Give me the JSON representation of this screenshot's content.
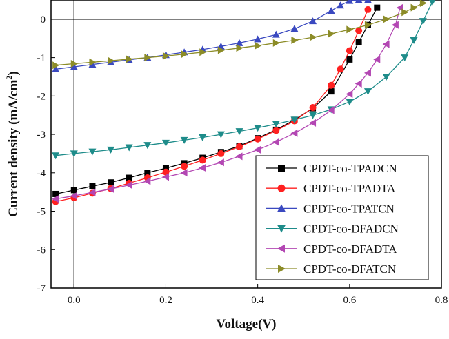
{
  "chart_data": {
    "type": "scatter",
    "title": "",
    "xlabel": "Voltage(V)",
    "ylabel_parts": {
      "main": "Current density (mA/cm",
      "sup": "2",
      "close": ")"
    },
    "xlim": [
      -0.05,
      0.8
    ],
    "ylim": [
      -7,
      0.5
    ],
    "x_ticks": [
      0.0,
      0.2,
      0.4,
      0.6,
      0.8
    ],
    "x_tick_labels": [
      "0.0",
      "0.2",
      "0.4",
      "0.6",
      "0.8"
    ],
    "y_ticks": [
      0,
      -1,
      -2,
      -3,
      -4,
      -5,
      -6,
      -7
    ],
    "y_tick_labels": [
      "0",
      "-1",
      "-2",
      "-3",
      "-4",
      "-5",
      "-6",
      "-7"
    ],
    "zero_lines": {
      "x": 0,
      "y": 0
    },
    "legend_position": "lower-right",
    "series": [
      {
        "name": "CPDT-co-TPADCN",
        "color": "#000000",
        "marker": "square",
        "x": [
          -0.04,
          0.0,
          0.04,
          0.08,
          0.12,
          0.16,
          0.2,
          0.24,
          0.28,
          0.32,
          0.36,
          0.4,
          0.44,
          0.48,
          0.52,
          0.56,
          0.6,
          0.62,
          0.64,
          0.66
        ],
        "y": [
          -4.55,
          -4.45,
          -4.35,
          -4.25,
          -4.13,
          -4.0,
          -3.88,
          -3.75,
          -3.61,
          -3.46,
          -3.3,
          -3.1,
          -2.88,
          -2.62,
          -2.32,
          -1.88,
          -1.05,
          -0.6,
          -0.15,
          0.3
        ]
      },
      {
        "name": "CPDT-co-TPADTA",
        "color": "#ff2020",
        "marker": "circle",
        "x": [
          -0.04,
          0.0,
          0.04,
          0.08,
          0.12,
          0.16,
          0.2,
          0.24,
          0.28,
          0.32,
          0.36,
          0.4,
          0.44,
          0.48,
          0.52,
          0.56,
          0.58,
          0.6,
          0.62,
          0.64
        ],
        "y": [
          -4.75,
          -4.65,
          -4.53,
          -4.41,
          -4.27,
          -4.13,
          -3.98,
          -3.83,
          -3.67,
          -3.5,
          -3.32,
          -3.12,
          -2.9,
          -2.65,
          -2.3,
          -1.72,
          -1.3,
          -0.82,
          -0.3,
          0.25
        ]
      },
      {
        "name": "CPDT-co-TPATCN",
        "color": "#3a49c0",
        "marker": "triangle-up",
        "x": [
          -0.04,
          0.0,
          0.04,
          0.08,
          0.12,
          0.16,
          0.2,
          0.24,
          0.28,
          0.32,
          0.36,
          0.4,
          0.44,
          0.48,
          0.52,
          0.56,
          0.58,
          0.6,
          0.62,
          0.64
        ],
        "y": [
          -1.3,
          -1.24,
          -1.18,
          -1.12,
          -1.06,
          -1.0,
          -0.93,
          -0.86,
          -0.79,
          -0.71,
          -0.62,
          -0.52,
          -0.4,
          -0.25,
          -0.05,
          0.22,
          0.36,
          0.48,
          0.5,
          0.5
        ]
      },
      {
        "name": "CPDT-co-DFADCN",
        "color": "#1e8c8a",
        "marker": "triangle-down",
        "x": [
          -0.04,
          0.0,
          0.04,
          0.08,
          0.12,
          0.16,
          0.2,
          0.24,
          0.28,
          0.32,
          0.36,
          0.4,
          0.44,
          0.48,
          0.52,
          0.56,
          0.6,
          0.64,
          0.68,
          0.72,
          0.74,
          0.76,
          0.78
        ],
        "y": [
          -3.55,
          -3.5,
          -3.45,
          -3.4,
          -3.34,
          -3.28,
          -3.22,
          -3.15,
          -3.08,
          -3.0,
          -2.92,
          -2.83,
          -2.73,
          -2.62,
          -2.5,
          -2.35,
          -2.15,
          -1.88,
          -1.5,
          -1.0,
          -0.55,
          -0.05,
          0.45
        ]
      },
      {
        "name": "CPDT-co-DFADTA",
        "color": "#b347b3",
        "marker": "triangle-left",
        "x": [
          -0.04,
          0.0,
          0.04,
          0.08,
          0.12,
          0.16,
          0.2,
          0.24,
          0.28,
          0.32,
          0.36,
          0.4,
          0.44,
          0.48,
          0.52,
          0.56,
          0.6,
          0.62,
          0.64,
          0.66,
          0.68,
          0.7,
          0.71
        ],
        "y": [
          -4.68,
          -4.6,
          -4.51,
          -4.42,
          -4.32,
          -4.22,
          -4.11,
          -4.0,
          -3.87,
          -3.73,
          -3.57,
          -3.4,
          -3.2,
          -2.97,
          -2.7,
          -2.37,
          -1.95,
          -1.68,
          -1.4,
          -1.05,
          -0.65,
          -0.15,
          0.3
        ]
      },
      {
        "name": "CPDT-co-DFATCN",
        "color": "#8c8c28",
        "marker": "triangle-right",
        "x": [
          -0.04,
          0.0,
          0.04,
          0.08,
          0.12,
          0.16,
          0.2,
          0.24,
          0.28,
          0.32,
          0.36,
          0.4,
          0.44,
          0.48,
          0.52,
          0.56,
          0.6,
          0.64,
          0.68,
          0.72,
          0.74,
          0.76
        ],
        "y": [
          -1.2,
          -1.16,
          -1.12,
          -1.08,
          -1.04,
          -1.0,
          -0.96,
          -0.91,
          -0.86,
          -0.81,
          -0.75,
          -0.69,
          -0.62,
          -0.55,
          -0.47,
          -0.38,
          -0.27,
          -0.15,
          0.0,
          0.18,
          0.3,
          0.42
        ]
      }
    ]
  }
}
